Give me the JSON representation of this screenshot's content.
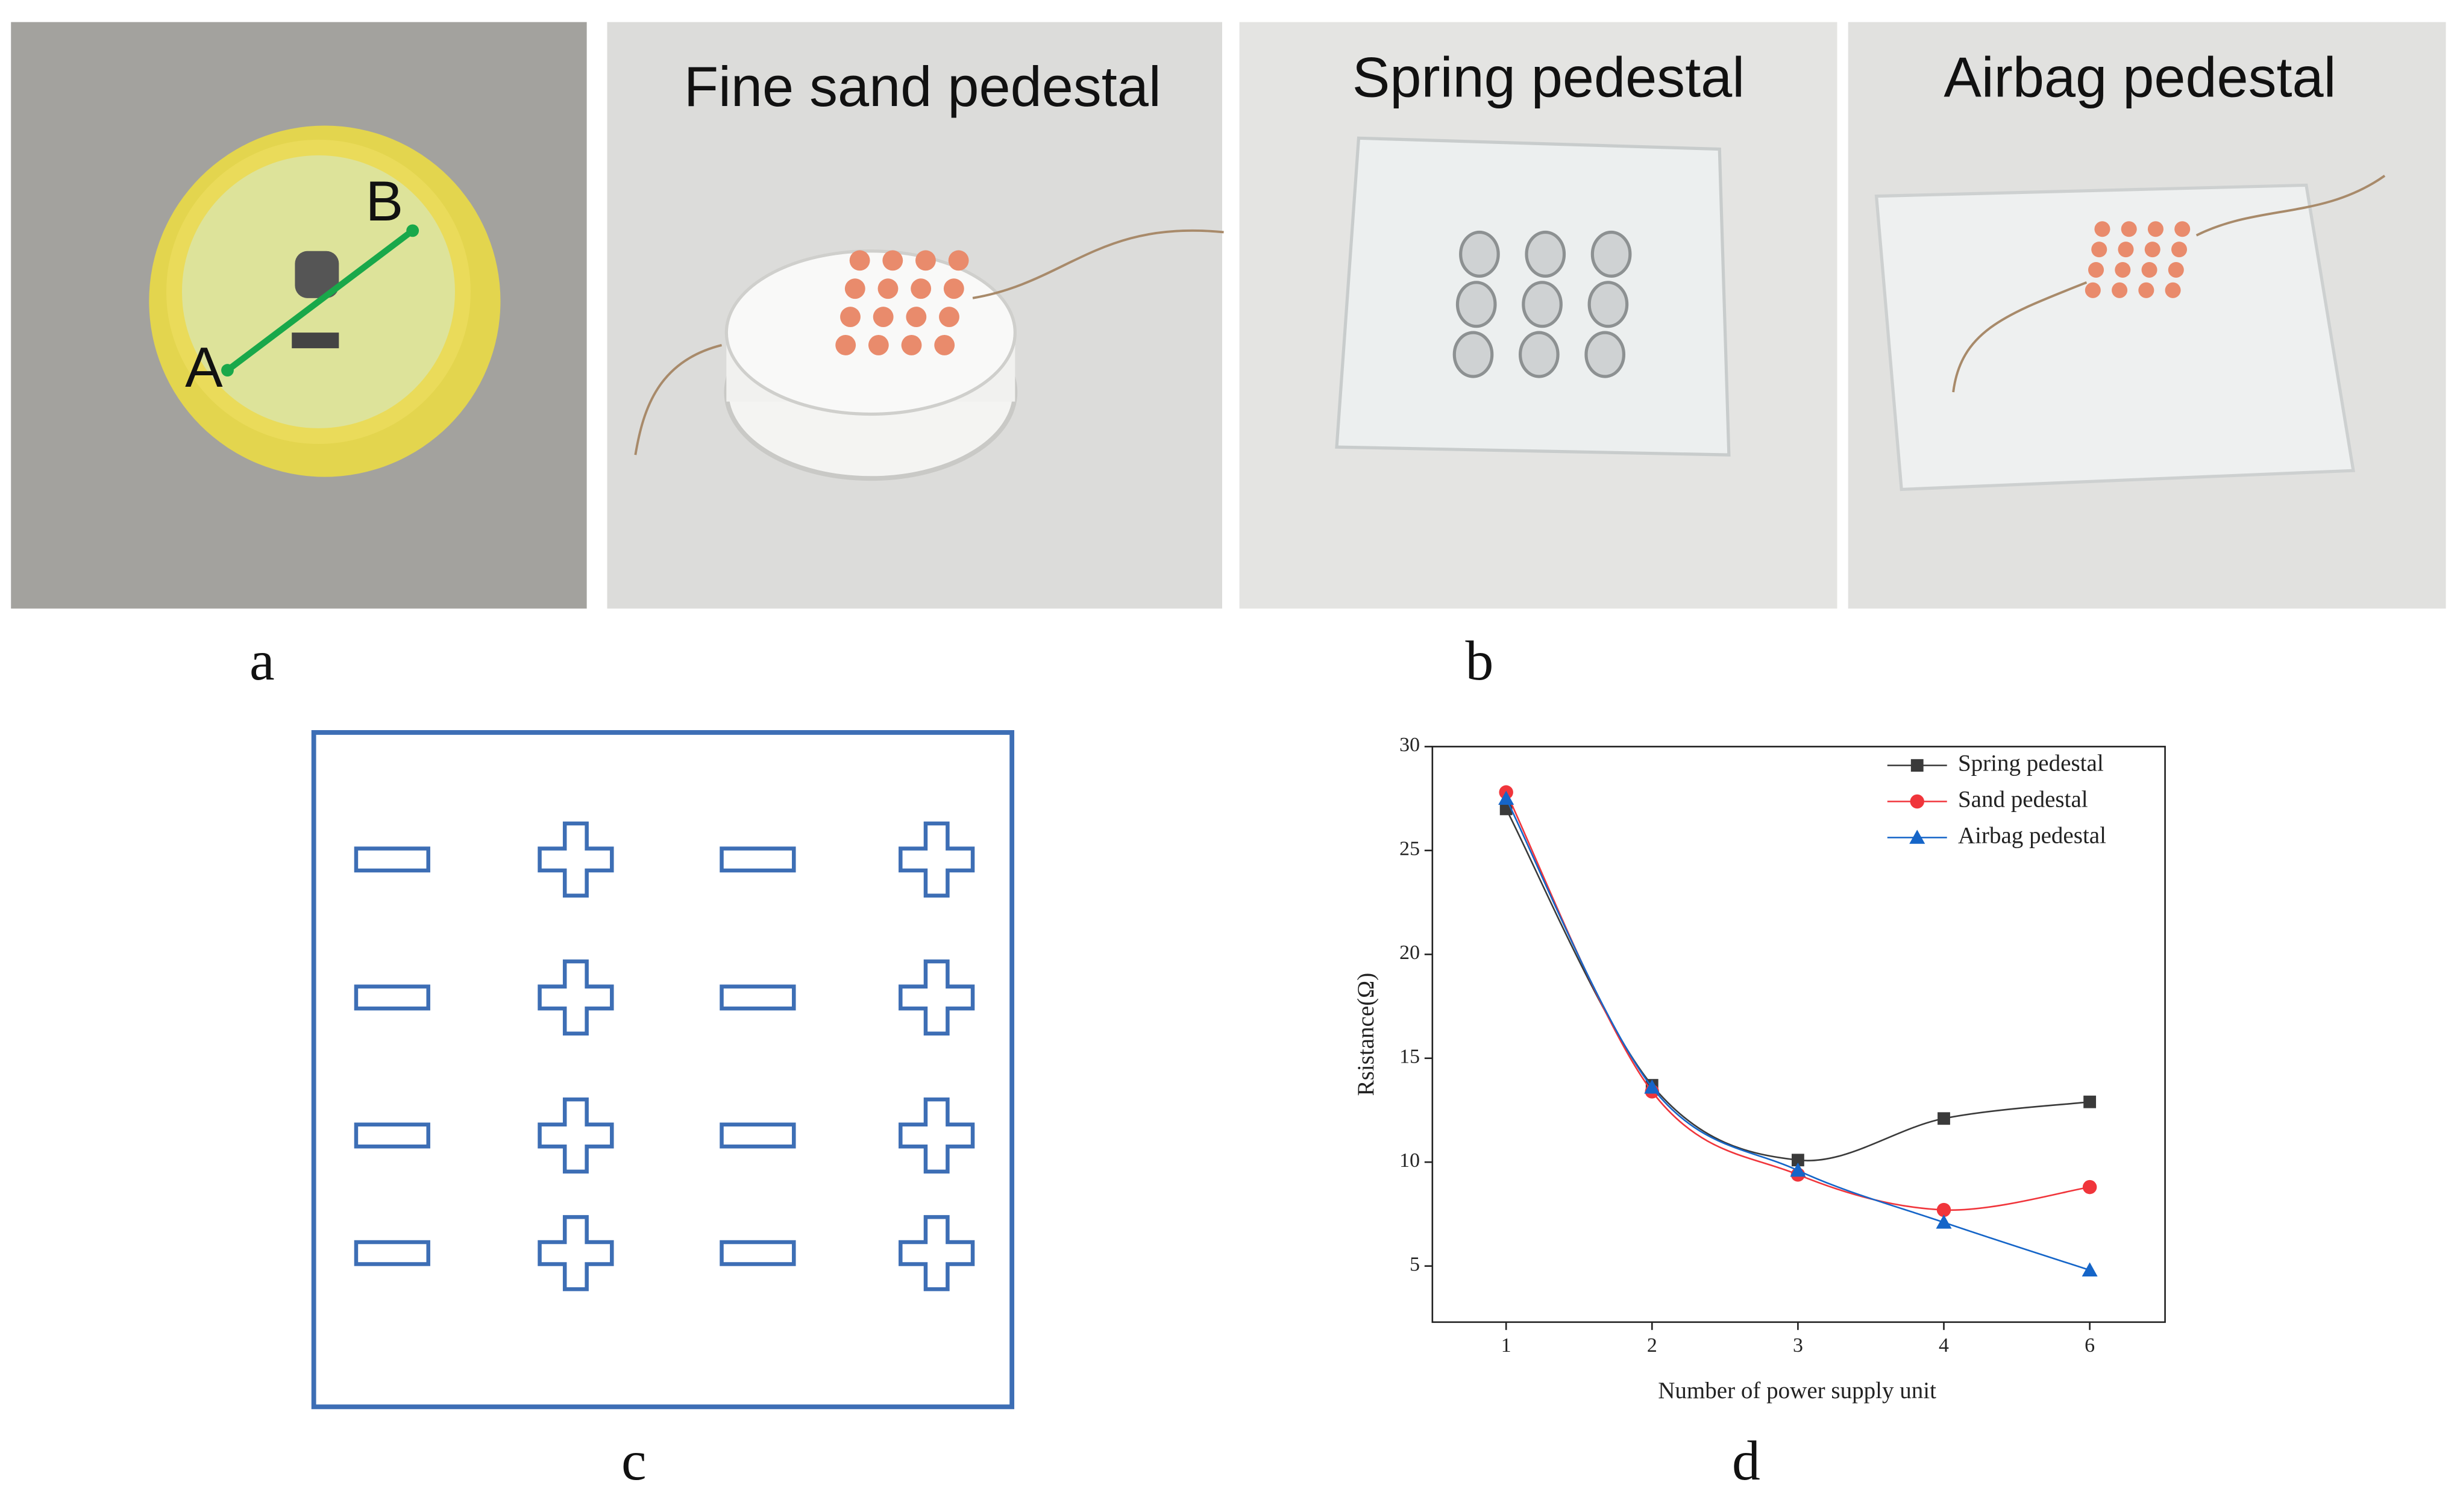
{
  "panels": {
    "a": {
      "label": "a",
      "points": [
        "A",
        "B"
      ]
    },
    "b": {
      "label": "b",
      "photos": [
        "Fine sand pedestal",
        "Spring pedestal",
        "Airbag pedestal"
      ]
    },
    "c": {
      "label": "c"
    },
    "d": {
      "label": "d"
    }
  },
  "chart_data": {
    "type": "line",
    "x_label": "Number of power supply unit",
    "y_label": "Rsistance(Ω)",
    "categories": [
      "1",
      "2",
      "3",
      "4",
      "6"
    ],
    "series": [
      {
        "name": "Spring pedestal",
        "color": "#3a3a3a",
        "marker": "square",
        "values": [
          27.0,
          13.7,
          10.1,
          12.1,
          12.9
        ]
      },
      {
        "name": "Sand pedestal",
        "color": "#f0353b",
        "marker": "circle",
        "values": [
          27.8,
          13.4,
          9.4,
          7.7,
          8.8
        ]
      },
      {
        "name": "Airbag pedestal",
        "color": "#1565c8",
        "marker": "triangle",
        "values": [
          27.5,
          13.6,
          9.6,
          7.1,
          4.8
        ]
      }
    ],
    "ylim": [
      2.3,
      30
    ],
    "yticks": [
      5,
      10,
      15,
      20,
      25,
      30
    ],
    "legend": "upper right"
  }
}
